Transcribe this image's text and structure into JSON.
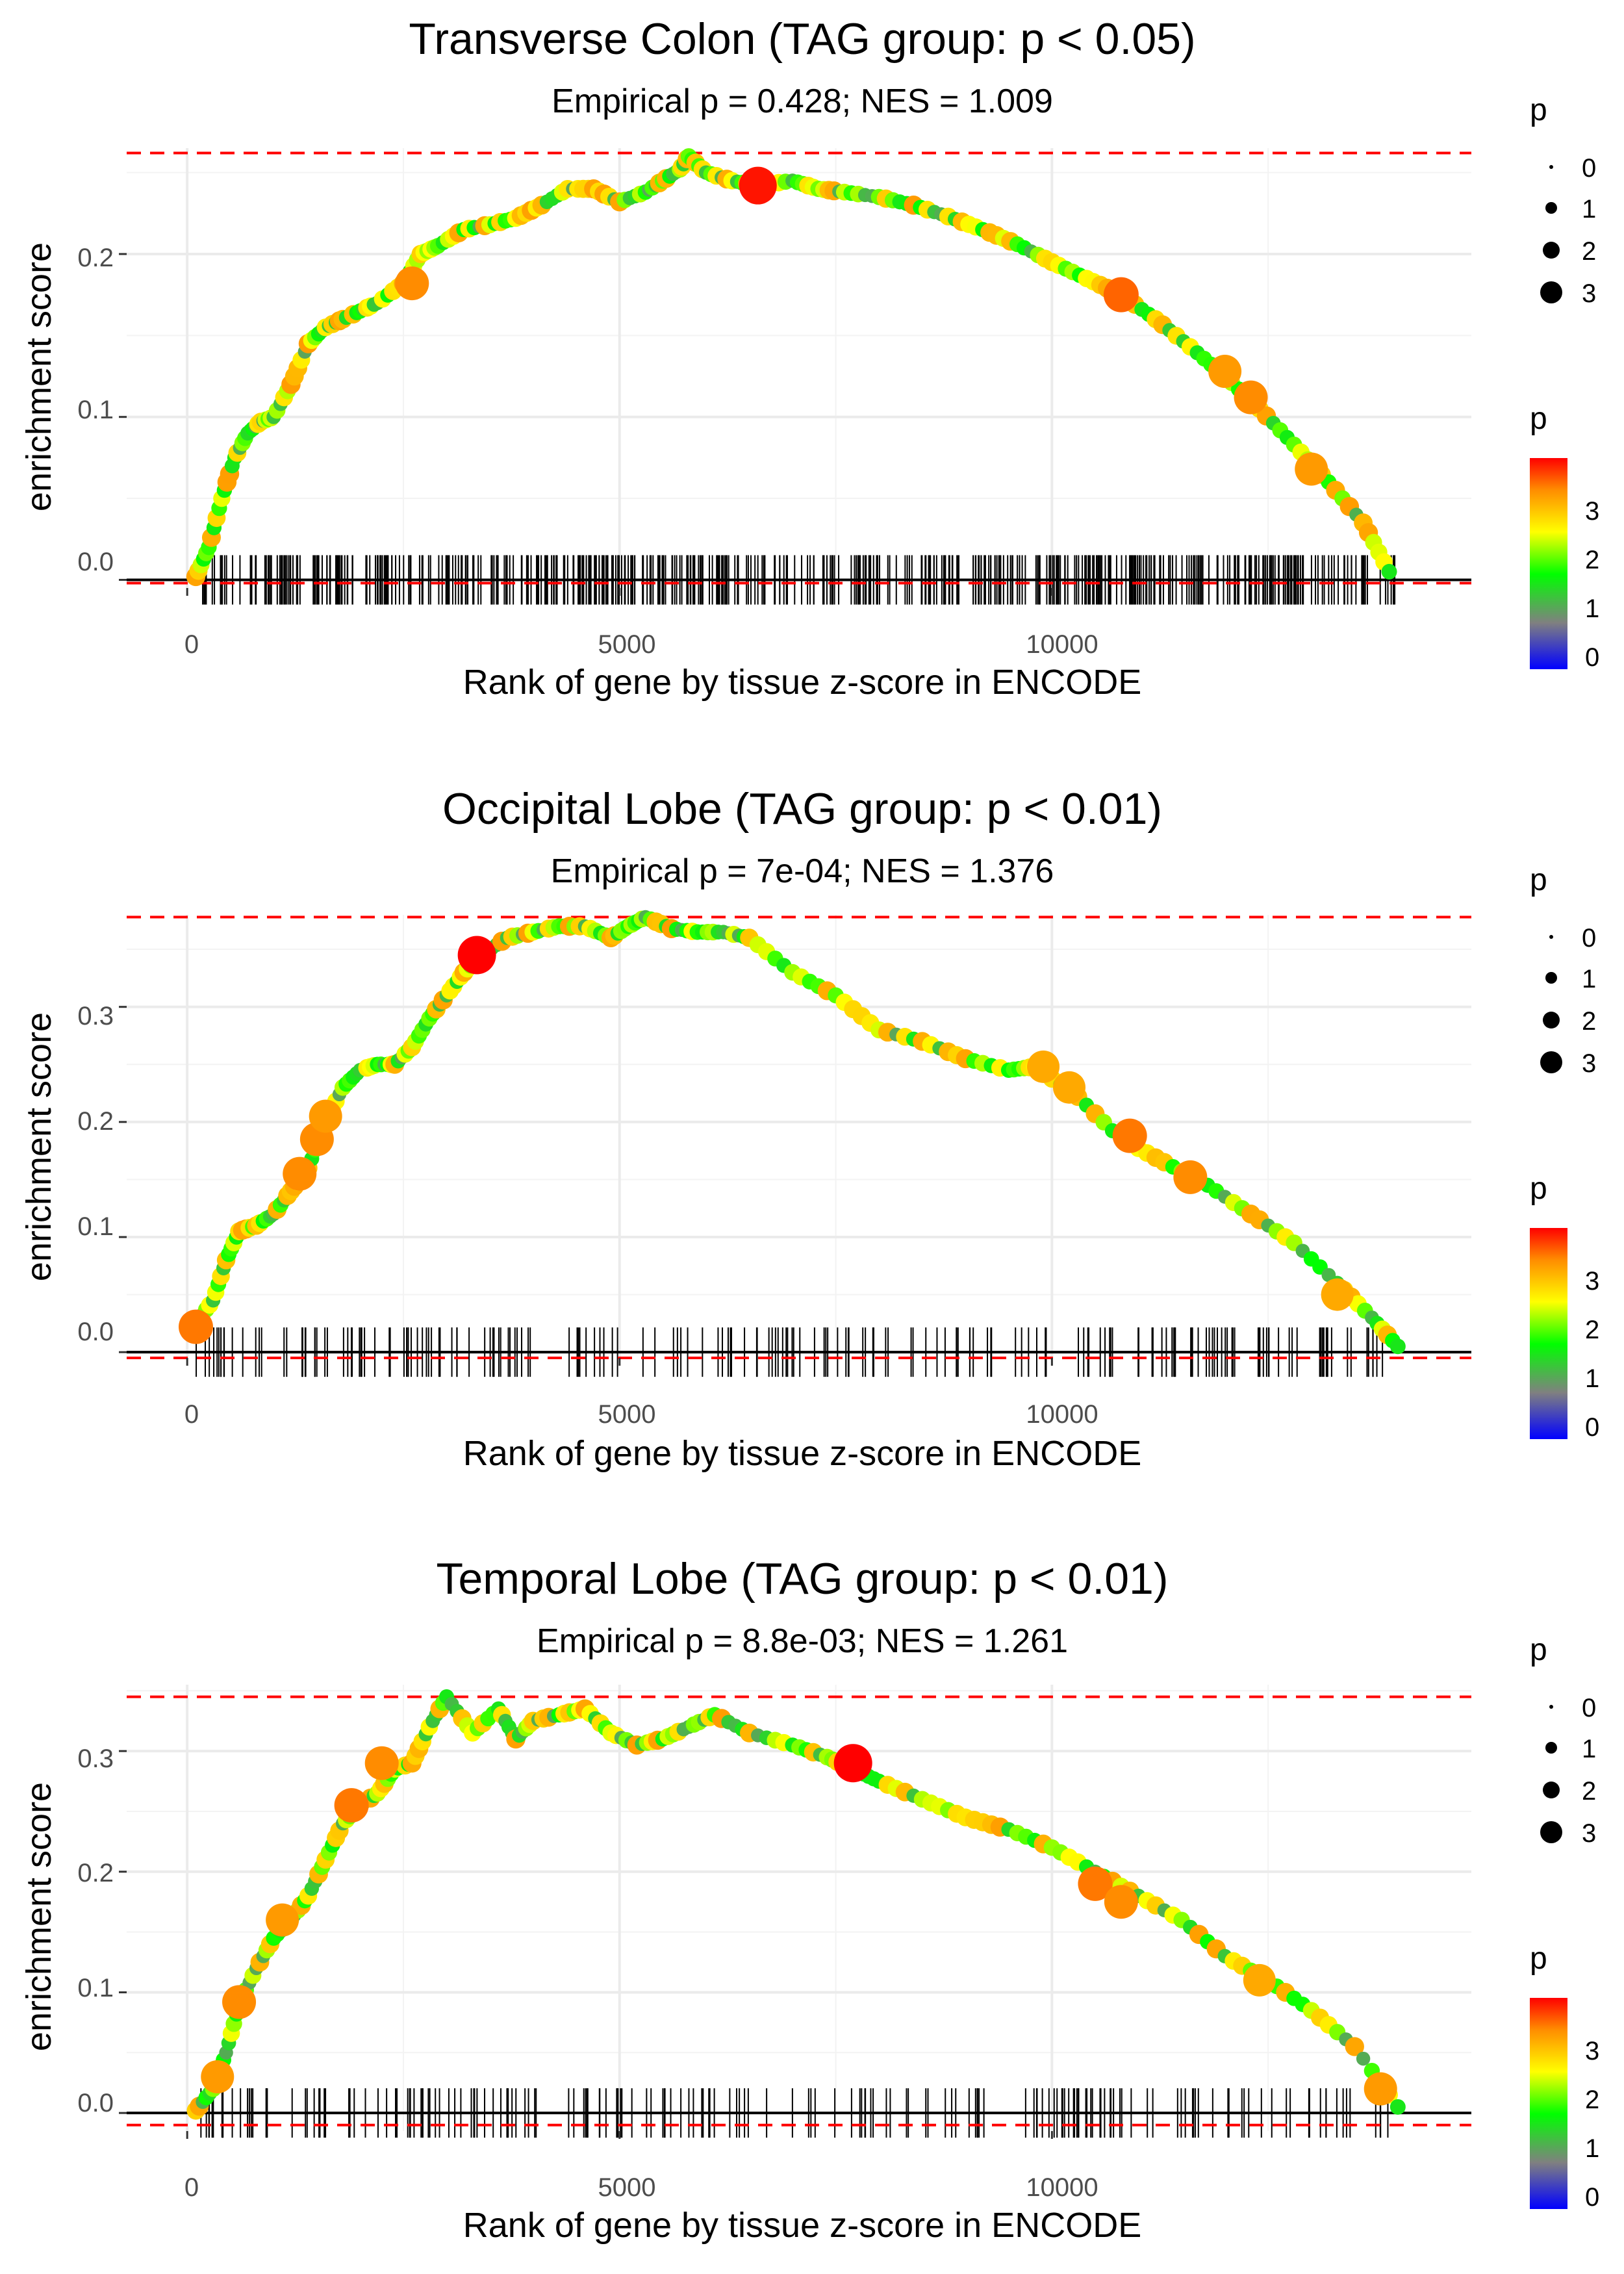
{
  "chart_data": [
    {
      "type": "line",
      "title": "Transverse Colon (TAG group: p < 0.05)",
      "subtitle": "Empirical p = 0.428; NES = 1.009",
      "xlabel": "Rank of gene by tissue z-score in ENCODE",
      "ylabel": "enrichment score",
      "xlim": [
        -700,
        14850
      ],
      "ylim": [
        -0.005,
        0.265
      ],
      "x_ticks": [
        0,
        5000,
        10000
      ],
      "x_tick_labels": [
        "0",
        "5000",
        "10000"
      ],
      "y_ticks": [
        0.0,
        0.1,
        0.2
      ],
      "y_tick_labels": [
        "0.0",
        "0.1",
        "0.2"
      ],
      "max_es": 0.262,
      "min_es": -0.002,
      "series": [
        {
          "name": "running enrichment score",
          "x": [
            100,
            250,
            400,
            550,
            700,
            850,
            1000,
            1200,
            1400,
            1600,
            1800,
            2000,
            2200,
            2500,
            2700,
            2900,
            3200,
            3500,
            3800,
            4100,
            4400,
            4700,
            5000,
            5300,
            5500,
            5700,
            5800,
            6000,
            6300,
            6600,
            7000,
            7300,
            7600,
            8000,
            8400,
            8800,
            9200,
            9600,
            10000,
            10400,
            10800,
            11200,
            11600,
            12000,
            12400,
            12800,
            13200,
            13600,
            13900
          ],
          "y": [
            0.002,
            0.02,
            0.05,
            0.075,
            0.09,
            0.097,
            0.1,
            0.12,
            0.145,
            0.155,
            0.16,
            0.165,
            0.17,
            0.182,
            0.2,
            0.205,
            0.215,
            0.218,
            0.222,
            0.23,
            0.24,
            0.24,
            0.232,
            0.238,
            0.245,
            0.252,
            0.26,
            0.25,
            0.245,
            0.242,
            0.245,
            0.24,
            0.238,
            0.235,
            0.23,
            0.223,
            0.215,
            0.206,
            0.195,
            0.185,
            0.175,
            0.16,
            0.143,
            0.125,
            0.105,
            0.083,
            0.06,
            0.035,
            0.005
          ]
        }
      ],
      "highlight_points": [
        {
          "x": 2600,
          "y": 0.182,
          "p": 3.2
        },
        {
          "x": 6600,
          "y": 0.242,
          "p": 3.8
        },
        {
          "x": 10800,
          "y": 0.175,
          "p": 3.4
        },
        {
          "x": 12000,
          "y": 0.128,
          "p": 3.1
        },
        {
          "x": 12300,
          "y": 0.112,
          "p": 3.2
        },
        {
          "x": 13000,
          "y": 0.068,
          "p": 3.1
        }
      ],
      "gene_hits_count": 520,
      "hit_range": [
        100,
        14000
      ],
      "size_legend": {
        "title": "p",
        "labels": [
          "0",
          "1",
          "2",
          "3"
        ]
      },
      "color_legend": {
        "title": "p",
        "labels": [
          "3",
          "2",
          "1",
          "0"
        ]
      }
    },
    {
      "type": "line",
      "title": "Occipital Lobe (TAG group: p < 0.01)",
      "subtitle": "Empirical p = 7e-04; NES = 1.376",
      "xlabel": "Rank of gene by tissue z-score in ENCODE",
      "ylabel": "enrichment score",
      "xlim": [
        -700,
        14850
      ],
      "ylim": [
        -0.005,
        0.38
      ],
      "x_ticks": [
        0,
        5000,
        10000
      ],
      "x_tick_labels": [
        "0",
        "5000",
        "10000"
      ],
      "y_ticks": [
        0.0,
        0.1,
        0.2,
        0.3
      ],
      "y_tick_labels": [
        "0.0",
        "0.1",
        "0.2",
        "0.3"
      ],
      "max_es": 0.378,
      "min_es": -0.005,
      "series": [
        {
          "name": "running enrichment score",
          "x": [
            100,
            300,
            450,
            600,
            800,
            1000,
            1200,
            1400,
            1600,
            1800,
            2000,
            2200,
            2400,
            2600,
            2800,
            3000,
            3200,
            3400,
            3700,
            4000,
            4300,
            4600,
            4900,
            5100,
            5300,
            5600,
            5900,
            6200,
            6500,
            7000,
            7500,
            8000,
            8500,
            9000,
            9500,
            9800,
            10300,
            10800,
            11300,
            11800,
            12300,
            12800,
            13300,
            13700,
            14000
          ],
          "y": [
            0.025,
            0.045,
            0.08,
            0.105,
            0.11,
            0.12,
            0.14,
            0.16,
            0.2,
            0.23,
            0.245,
            0.25,
            0.25,
            0.265,
            0.29,
            0.31,
            0.33,
            0.345,
            0.36,
            0.365,
            0.37,
            0.37,
            0.36,
            0.37,
            0.378,
            0.368,
            0.365,
            0.365,
            0.36,
            0.33,
            0.31,
            0.28,
            0.27,
            0.255,
            0.245,
            0.248,
            0.222,
            0.185,
            0.165,
            0.145,
            0.12,
            0.095,
            0.06,
            0.03,
            0.005
          ]
        }
      ],
      "highlight_points": [
        {
          "x": 100,
          "y": 0.022,
          "p": 3.3
        },
        {
          "x": 1300,
          "y": 0.155,
          "p": 3.2
        },
        {
          "x": 1500,
          "y": 0.185,
          "p": 3.2
        },
        {
          "x": 1600,
          "y": 0.205,
          "p": 3.1
        },
        {
          "x": 3350,
          "y": 0.345,
          "p": 3.9
        },
        {
          "x": 9900,
          "y": 0.248,
          "p": 3.0
        },
        {
          "x": 10200,
          "y": 0.23,
          "p": 3.0
        },
        {
          "x": 10900,
          "y": 0.188,
          "p": 3.3
        },
        {
          "x": 11600,
          "y": 0.152,
          "p": 3.2
        },
        {
          "x": 13300,
          "y": 0.05,
          "p": 3.0
        }
      ],
      "gene_hits_count": 200,
      "hit_range": [
        50,
        13900
      ],
      "size_legend": {
        "title": "p",
        "labels": [
          "0",
          "1",
          "2",
          "3"
        ]
      },
      "color_legend": {
        "title": "p",
        "labels": [
          "3",
          "2",
          "1",
          "0"
        ]
      }
    },
    {
      "type": "line",
      "title": "Temporal Lobe (TAG group: p < 0.01)",
      "subtitle": "Empirical p = 8.8e-03; NES = 1.261",
      "xlabel": "Rank of gene by tissue z-score in ENCODE",
      "ylabel": "enrichment score",
      "xlim": [
        -700,
        14850
      ],
      "ylim": [
        -0.015,
        0.355
      ],
      "x_ticks": [
        0,
        5000,
        10000
      ],
      "x_tick_labels": [
        "0",
        "5000",
        "10000"
      ],
      "y_ticks": [
        0.0,
        0.1,
        0.2,
        0.3
      ],
      "y_tick_labels": [
        "0.0",
        "0.1",
        "0.2",
        "0.3"
      ],
      "max_es": 0.345,
      "min_es": -0.01,
      "series": [
        {
          "name": "running enrichment score",
          "x": [
            100,
            300,
            450,
            600,
            800,
            1000,
            1200,
            1400,
            1600,
            1800,
            2000,
            2200,
            2400,
            2600,
            2800,
            3000,
            3300,
            3600,
            3800,
            4000,
            4300,
            4600,
            4900,
            5200,
            5500,
            5800,
            6100,
            6500,
            7000,
            7400,
            7700,
            8000,
            8500,
            9000,
            9500,
            10000,
            10500,
            11000,
            11500,
            12000,
            12500,
            13000,
            13500,
            14000
          ],
          "y": [
            0.002,
            0.02,
            0.05,
            0.09,
            0.12,
            0.145,
            0.16,
            0.18,
            0.21,
            0.24,
            0.255,
            0.265,
            0.285,
            0.29,
            0.32,
            0.345,
            0.315,
            0.335,
            0.31,
            0.325,
            0.33,
            0.335,
            0.315,
            0.305,
            0.31,
            0.32,
            0.33,
            0.315,
            0.305,
            0.295,
            0.285,
            0.275,
            0.26,
            0.245,
            0.235,
            0.22,
            0.2,
            0.18,
            0.16,
            0.13,
            0.11,
            0.085,
            0.055,
            0.005
          ]
        }
      ],
      "highlight_points": [
        {
          "x": 350,
          "y": 0.03,
          "p": 3.1
        },
        {
          "x": 600,
          "y": 0.092,
          "p": 3.2
        },
        {
          "x": 1100,
          "y": 0.16,
          "p": 3.1
        },
        {
          "x": 1900,
          "y": 0.255,
          "p": 3.3
        },
        {
          "x": 2250,
          "y": 0.29,
          "p": 3.2
        },
        {
          "x": 7700,
          "y": 0.29,
          "p": 3.9
        },
        {
          "x": 10500,
          "y": 0.19,
          "p": 3.3
        },
        {
          "x": 10800,
          "y": 0.175,
          "p": 3.2
        },
        {
          "x": 12400,
          "y": 0.11,
          "p": 3.0
        },
        {
          "x": 13800,
          "y": 0.02,
          "p": 3.1
        }
      ],
      "gene_hits_count": 190,
      "hit_range": [
        150,
        13900
      ],
      "size_legend": {
        "title": "p",
        "labels": [
          "0",
          "1",
          "2",
          "3"
        ]
      },
      "color_legend": {
        "title": "p",
        "labels": [
          "3",
          "2",
          "1",
          "0"
        ]
      }
    }
  ],
  "colors": {
    "gradient": [
      "#0000ff",
      "#808080",
      "#00ff00",
      "#ffff00",
      "#ff8c00",
      "#ff0000"
    ],
    "reference_line": "#ff0000",
    "curve": "#bfbfbf",
    "zero_line": "#000000",
    "grid": "#ebebeb"
  }
}
